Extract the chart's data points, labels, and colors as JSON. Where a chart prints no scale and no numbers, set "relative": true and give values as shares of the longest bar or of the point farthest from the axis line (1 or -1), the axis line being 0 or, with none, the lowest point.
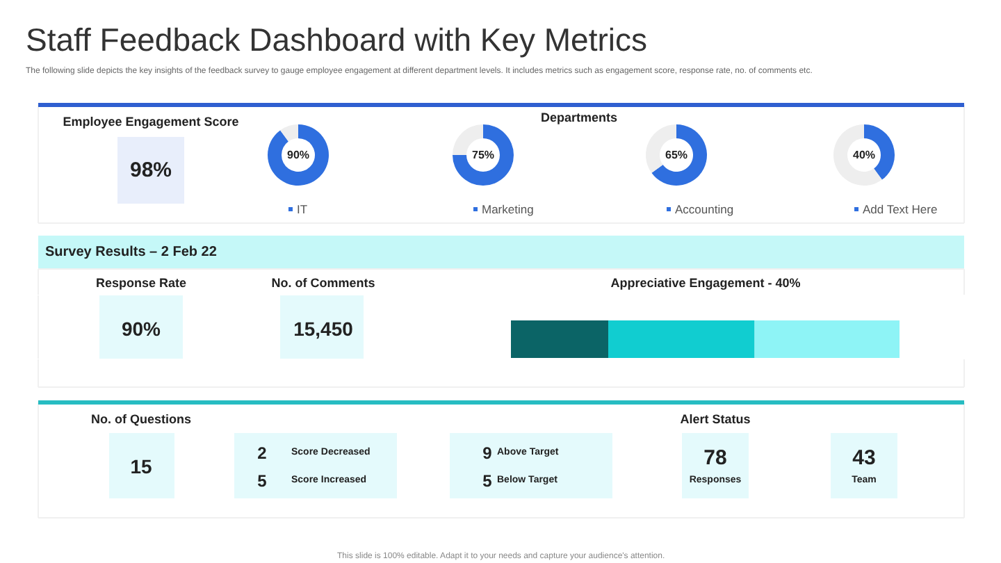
{
  "chart_data": [
    {
      "type": "other",
      "title": "Staff Feedback Dashboard with Key Metrics",
      "subtitle": "The following slide depicts the key insights of the feedback survey to gauge employee engagement at different department levels. It includes metrics such as engagement score, response rate, no. of comments etc.",
      "annotations": [
        "Employee Engagement Score",
        "98%",
        "Departments",
        "Survey Results – 2 Feb 22",
        "Response Rate",
        "90%",
        "No. of Comments",
        "15,450",
        "No. of Questions",
        "15",
        "2",
        "Score Decreased",
        "5",
        "Score Increased",
        "9",
        "Above Target",
        "5",
        "Below Target",
        "Alert Status",
        "78",
        "Responses",
        "43",
        "Team",
        "This slide is 100% editable. Adapt it to your needs and capture your audience's attention."
      ]
    },
    {
      "type": "donut",
      "categories": [
        "IT",
        null
      ],
      "values": [
        90,
        10
      ],
      "colors": [
        "#2f6fdf",
        "#eeeeee"
      ],
      "value_labels": [
        "90%",
        null
      ],
      "legend": "bottom"
    },
    {
      "type": "donut",
      "categories": [
        "Marketing",
        null
      ],
      "values": [
        75,
        25
      ],
      "colors": [
        "#2f6fdf",
        "#eeeeee"
      ],
      "value_labels": [
        "75%",
        null
      ],
      "legend": "bottom"
    },
    {
      "type": "donut",
      "categories": [
        "Accounting",
        null
      ],
      "values": [
        65,
        35
      ],
      "colors": [
        "#2f6fdf",
        "#eeeeee"
      ],
      "value_labels": [
        "65%",
        null
      ],
      "legend": "bottom"
    },
    {
      "type": "donut",
      "categories": [
        "Add Text Here",
        null
      ],
      "values": [
        40,
        60
      ],
      "colors": [
        "#2f6fdf",
        "#eeeeee"
      ],
      "value_labels": [
        "40%",
        null
      ],
      "legend": "bottom"
    },
    {
      "type": "bar",
      "orientation": "horizontal",
      "stacked": true,
      "relative": true,
      "title": "Appreciative Engagement - 40%",
      "categories": [
        null
      ],
      "series": [
        {
          "color": "#0b6466",
          "values": [
            0.25
          ]
        },
        {
          "color": "#11cdd0",
          "values": [
            0.376
          ]
        },
        {
          "color": "#8ef4f6",
          "values": [
            0.374
          ]
        }
      ]
    }
  ]
}
